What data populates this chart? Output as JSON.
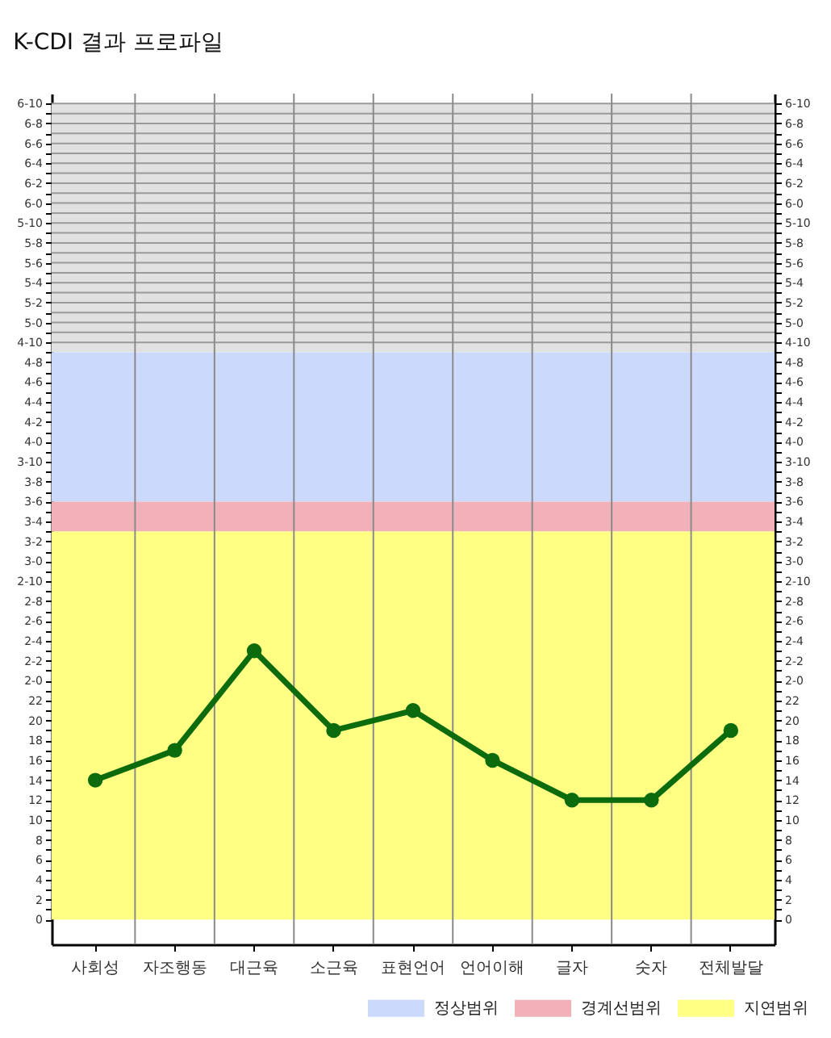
{
  "chart_data": {
    "type": "line",
    "title": "K-CDI 결과 프로파일",
    "categories": [
      "사회성",
      "자조행동",
      "대근육",
      "소근육",
      "표현언어",
      "언어이해",
      "글자",
      "숫자",
      "전체발달"
    ],
    "series": [
      {
        "color": "#0c6b0c",
        "values": [
          14,
          17,
          27,
          19,
          21,
          16,
          12,
          12,
          19
        ]
      }
    ],
    "marker": "circle",
    "line_style": "solid",
    "grid": true,
    "legend": "bottom right",
    "ylim": [
      -2.5,
      83
    ],
    "yticks": [
      0,
      {
        "value": 1,
        "label": null
      },
      2,
      {
        "value": 3,
        "label": null
      },
      4,
      {
        "value": 5,
        "label": null
      },
      6,
      {
        "value": 7,
        "label": null
      },
      8,
      {
        "value": 9,
        "label": null
      },
      10,
      {
        "value": 11,
        "label": null
      },
      12,
      {
        "value": 13,
        "label": null
      },
      14,
      {
        "value": 15,
        "label": null
      },
      16,
      {
        "value": 17,
        "label": null
      },
      18,
      {
        "value": 19,
        "label": null
      },
      20,
      {
        "value": 21,
        "label": null
      },
      22,
      {
        "value": 23,
        "label": null
      },
      {
        "value": 24,
        "label": "2-0"
      },
      {
        "value": 25,
        "label": null
      },
      {
        "value": 26,
        "label": "2-2"
      },
      {
        "value": 27,
        "label": null
      },
      {
        "value": 28,
        "label": "2-4"
      },
      {
        "value": 29,
        "label": null
      },
      {
        "value": 30,
        "label": "2-6"
      },
      {
        "value": 31,
        "label": null
      },
      {
        "value": 32,
        "label": "2-8"
      },
      {
        "value": 33,
        "label": null
      },
      {
        "value": 34,
        "label": "2-10"
      },
      {
        "value": 35,
        "label": null
      },
      {
        "value": 36,
        "label": "3-0"
      },
      {
        "value": 37,
        "label": null
      },
      {
        "value": 38,
        "label": "3-2"
      },
      {
        "value": 39,
        "label": null
      },
      {
        "value": 40,
        "label": "3-4"
      },
      {
        "value": 41,
        "label": null
      },
      {
        "value": 42,
        "label": "3-6"
      },
      {
        "value": 43,
        "label": null
      },
      {
        "value": 44,
        "label": "3-8"
      },
      {
        "value": 45,
        "label": null
      },
      {
        "value": 46,
        "label": "3-10"
      },
      {
        "value": 47,
        "label": null
      },
      {
        "value": 48,
        "label": "4-0"
      },
      {
        "value": 49,
        "label": null
      },
      {
        "value": 50,
        "label": "4-2"
      },
      {
        "value": 51,
        "label": null
      },
      {
        "value": 52,
        "label": "4-4"
      },
      {
        "value": 53,
        "label": null
      },
      {
        "value": 54,
        "label": "4-6"
      },
      {
        "value": 55,
        "label": null
      },
      {
        "value": 56,
        "label": "4-8"
      },
      {
        "value": 57,
        "label": null
      },
      {
        "value": 58,
        "label": "4-10"
      },
      {
        "value": 59,
        "label": null
      },
      {
        "value": 60,
        "label": "5-0"
      },
      {
        "value": 61,
        "label": null
      },
      {
        "value": 62,
        "label": "5-2"
      },
      {
        "value": 63,
        "label": null
      },
      {
        "value": 64,
        "label": "5-4"
      },
      {
        "value": 65,
        "label": null
      },
      {
        "value": 66,
        "label": "5-6"
      },
      {
        "value": 67,
        "label": null
      },
      {
        "value": 68,
        "label": "5-8"
      },
      {
        "value": 69,
        "label": null
      },
      {
        "value": 70,
        "label": "5-10"
      },
      {
        "value": 71,
        "label": null
      },
      {
        "value": 72,
        "label": "6-0"
      },
      {
        "value": 73,
        "label": null
      },
      {
        "value": 74,
        "label": "6-2"
      },
      {
        "value": 75,
        "label": null
      },
      {
        "value": 76,
        "label": "6-4"
      },
      {
        "value": 77,
        "label": null
      },
      {
        "value": 78,
        "label": "6-6"
      },
      {
        "value": 79,
        "label": null
      },
      {
        "value": 80,
        "label": "6-8"
      },
      {
        "value": 81,
        "label": null
      },
      {
        "value": 82,
        "label": "6-10"
      }
    ],
    "y2lim": [
      -2.5,
      83
    ],
    "y2ticks": [
      0,
      {
        "value": 1,
        "label": null
      },
      2,
      {
        "value": 3,
        "label": null
      },
      4,
      {
        "value": 5,
        "label": null
      },
      6,
      {
        "value": 7,
        "label": null
      },
      8,
      {
        "value": 9,
        "label": null
      },
      10,
      {
        "value": 11,
        "label": null
      },
      12,
      {
        "value": 13,
        "label": null
      },
      14,
      {
        "value": 15,
        "label": null
      },
      16,
      {
        "value": 17,
        "label": null
      },
      18,
      {
        "value": 19,
        "label": null
      },
      20,
      {
        "value": 21,
        "label": null
      },
      22,
      {
        "value": 23,
        "label": null
      },
      {
        "value": 24,
        "label": "2-0"
      },
      {
        "value": 25,
        "label": null
      },
      {
        "value": 26,
        "label": "2-2"
      },
      {
        "value": 27,
        "label": null
      },
      {
        "value": 28,
        "label": "2-4"
      },
      {
        "value": 29,
        "label": null
      },
      {
        "value": 30,
        "label": "2-6"
      },
      {
        "value": 31,
        "label": null
      },
      {
        "value": 32,
        "label": "2-8"
      },
      {
        "value": 33,
        "label": null
      },
      {
        "value": 34,
        "label": "2-10"
      },
      {
        "value": 35,
        "label": null
      },
      {
        "value": 36,
        "label": "3-0"
      },
      {
        "value": 37,
        "label": null
      },
      {
        "value": 38,
        "label": "3-2"
      },
      {
        "value": 39,
        "label": null
      },
      {
        "value": 40,
        "label": "3-4"
      },
      {
        "value": 41,
        "label": null
      },
      {
        "value": 42,
        "label": "3-6"
      },
      {
        "value": 43,
        "label": null
      },
      {
        "value": 44,
        "label": "3-8"
      },
      {
        "value": 45,
        "label": null
      },
      {
        "value": 46,
        "label": "3-10"
      },
      {
        "value": 47,
        "label": null
      },
      {
        "value": 48,
        "label": "4-0"
      },
      {
        "value": 49,
        "label": null
      },
      {
        "value": 50,
        "label": "4-2"
      },
      {
        "value": 51,
        "label": null
      },
      {
        "value": 52,
        "label": "4-4"
      },
      {
        "value": 53,
        "label": null
      },
      {
        "value": 54,
        "label": "4-6"
      },
      {
        "value": 55,
        "label": null
      },
      {
        "value": 56,
        "label": "4-8"
      },
      {
        "value": 57,
        "label": null
      },
      {
        "value": 58,
        "label": "4-10"
      },
      {
        "value": 59,
        "label": null
      },
      {
        "value": 60,
        "label": "5-0"
      },
      {
        "value": 61,
        "label": null
      },
      {
        "value": 62,
        "label": "5-2"
      },
      {
        "value": 63,
        "label": null
      },
      {
        "value": 64,
        "label": "5-4"
      },
      {
        "value": 65,
        "label": null
      },
      {
        "value": 66,
        "label": "5-6"
      },
      {
        "value": 67,
        "label": null
      },
      {
        "value": 68,
        "label": "5-8"
      },
      {
        "value": 69,
        "label": null
      },
      {
        "value": 70,
        "label": "5-10"
      },
      {
        "value": 71,
        "label": null
      },
      {
        "value": 72,
        "label": "6-0"
      },
      {
        "value": 73,
        "label": null
      },
      {
        "value": 74,
        "label": "6-2"
      },
      {
        "value": 75,
        "label": null
      },
      {
        "value": 76,
        "label": "6-4"
      },
      {
        "value": 77,
        "label": null
      },
      {
        "value": 78,
        "label": "6-6"
      },
      {
        "value": 79,
        "label": null
      },
      {
        "value": 80,
        "label": "6-8"
      },
      {
        "value": 81,
        "label": null
      },
      {
        "value": 82,
        "label": "6-10"
      }
    ],
    "bands": [
      {
        "axis": "y",
        "from": 42,
        "to": 57,
        "label": "정상범위",
        "color": "#cbdafc"
      },
      {
        "axis": "y",
        "from": 39,
        "to": 42,
        "label": "경계선범위",
        "color": "#f2b1b9"
      },
      {
        "axis": "y",
        "from": 0,
        "to": 39,
        "label": "지연범위",
        "color": "#ffff84"
      },
      {
        "axis": "y",
        "from": 57,
        "to": 82,
        "color": "#e1e1e1"
      }
    ]
  }
}
